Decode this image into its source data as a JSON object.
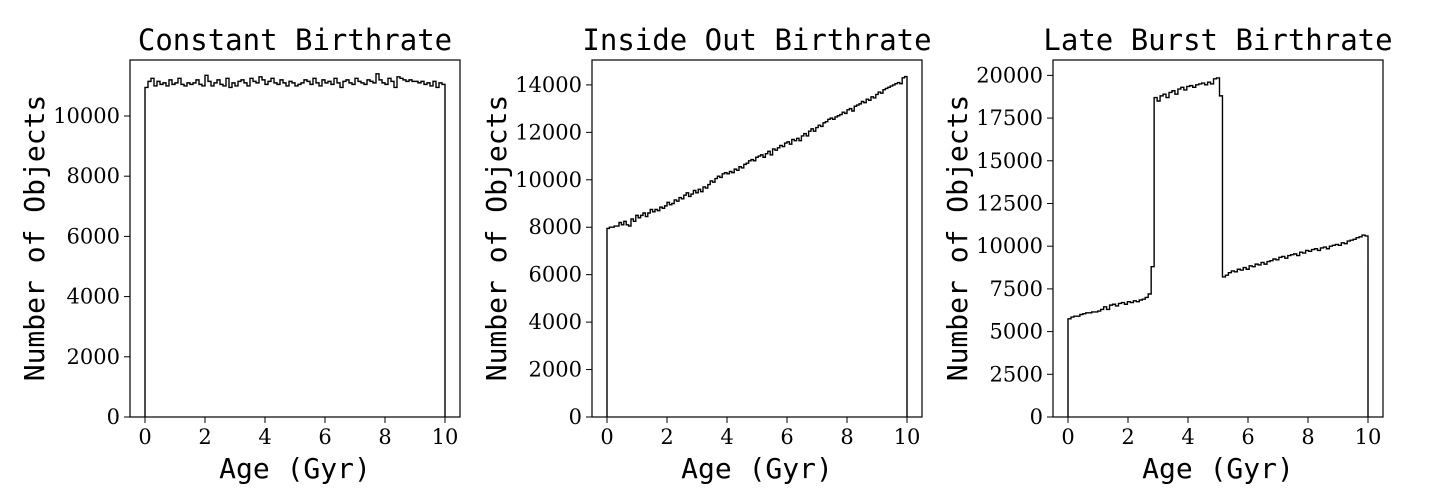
{
  "chart_data": [
    {
      "type": "histogram",
      "title": "Constant Birthrate",
      "xlabel": "Age (Gyr)",
      "ylabel": "Number of Objects",
      "xlim": [
        -0.5,
        10.5
      ],
      "ylim": [
        0,
        11860
      ],
      "xticks": [
        0,
        2,
        4,
        6,
        8,
        10
      ],
      "xticklabels": [
        "0",
        "2",
        "4",
        "6",
        "8",
        "10"
      ],
      "yticks": [
        0,
        2000,
        4000,
        6000,
        8000,
        10000
      ],
      "yticklabels": [
        "0",
        "2000",
        "4000",
        "6000",
        "8000",
        "10000"
      ],
      "bin_range": [
        0,
        10
      ],
      "counts": [
        10950,
        11150,
        11250,
        11000,
        11150,
        11050,
        11100,
        11000,
        11200,
        11050,
        11100,
        11250,
        11050,
        11000,
        11100,
        11050,
        11100,
        11200,
        11050,
        11000,
        11350,
        11150,
        11000,
        11100,
        11200,
        11050,
        11000,
        11250,
        10950,
        11100,
        11000,
        11150,
        11200,
        11100,
        11000,
        11250,
        11150,
        11100,
        11300,
        11200,
        11050,
        11150,
        11250,
        11100,
        11050,
        11200,
        11100,
        11000,
        11150,
        11100,
        11000,
        11050,
        11100,
        11200,
        11150,
        11050,
        11250,
        11100,
        11000,
        11200,
        11100,
        11150,
        11050,
        11250,
        11100,
        10950,
        11150,
        11200,
        11100,
        11050,
        11250,
        11150,
        11100,
        11050,
        11200,
        11150,
        11100,
        11400,
        11200,
        11100,
        11050,
        11250,
        11150,
        10950,
        11300,
        11250,
        11200,
        11150,
        11200,
        11150,
        11150,
        11100,
        11150,
        11050,
        11100,
        11000,
        11150,
        10950,
        11100,
        11050
      ]
    },
    {
      "type": "histogram",
      "title": "Inside Out Birthrate",
      "xlabel": "Age (Gyr)",
      "ylabel": "Number of Objects",
      "xlim": [
        -0.5,
        10.5
      ],
      "ylim": [
        0,
        15050
      ],
      "xticks": [
        0,
        2,
        4,
        6,
        8,
        10
      ],
      "xticklabels": [
        "0",
        "2",
        "4",
        "6",
        "8",
        "10"
      ],
      "yticks": [
        0,
        2000,
        4000,
        6000,
        8000,
        10000,
        12000,
        14000
      ],
      "yticklabels": [
        "0",
        "2000",
        "4000",
        "6000",
        "8000",
        "10000",
        "12000",
        "14000"
      ],
      "bin_range": [
        0,
        10
      ],
      "counts": [
        7950,
        8000,
        8000,
        8050,
        8050,
        8200,
        8100,
        8250,
        8100,
        8050,
        8350,
        8250,
        8500,
        8400,
        8500,
        8600,
        8450,
        8600,
        8750,
        8650,
        8750,
        8700,
        8850,
        8800,
        8900,
        9050,
        8950,
        9000,
        9150,
        9100,
        9250,
        9200,
        9350,
        9450,
        9300,
        9400,
        9550,
        9450,
        9600,
        9500,
        9700,
        9650,
        9800,
        9950,
        9900,
        10050,
        10150,
        10100,
        10250,
        10300,
        10250,
        10350,
        10300,
        10450,
        10400,
        10550,
        10500,
        10650,
        10700,
        10800,
        10850,
        10800,
        10950,
        11000,
        11050,
        10950,
        11100,
        11200,
        11050,
        11300,
        11250,
        11350,
        11450,
        11400,
        11550,
        11600,
        11500,
        11700,
        11650,
        11750,
        11650,
        11850,
        11950,
        11850,
        12050,
        12150,
        12050,
        12200,
        12300,
        12250,
        12400,
        12450,
        12550,
        12600,
        12550,
        12650,
        12700,
        12750,
        12850,
        12800,
        12950,
        13000,
        12900,
        13100,
        13150,
        13200,
        13300,
        13250,
        13400,
        13350,
        13500,
        13450,
        13600,
        13700,
        13650,
        13800,
        13850,
        13900,
        13950,
        14000,
        14050,
        14100,
        14050,
        14300,
        14350
      ]
    },
    {
      "type": "histogram",
      "title": "Late Burst Birthrate",
      "xlabel": "Age (Gyr)",
      "ylabel": "Number of Objects",
      "xlim": [
        -0.5,
        10.5
      ],
      "ylim": [
        0,
        20900
      ],
      "xticks": [
        0,
        2,
        4,
        6,
        8,
        10
      ],
      "xticklabels": [
        "0",
        "2",
        "4",
        "6",
        "8",
        "10"
      ],
      "yticks": [
        0,
        2500,
        5000,
        7500,
        10000,
        12500,
        15000,
        17500,
        20000
      ],
      "yticklabels": [
        "0",
        "2500",
        "5000",
        "7500",
        "10000",
        "12500",
        "15000",
        "17500",
        "20000"
      ],
      "bin_range": [
        0,
        10
      ],
      "counts": [
        5750,
        5850,
        5900,
        5900,
        6000,
        6050,
        6100,
        6100,
        6150,
        6150,
        6200,
        6300,
        6450,
        6300,
        6550,
        6600,
        6500,
        6650,
        6700,
        6600,
        6750,
        6700,
        6800,
        6750,
        6850,
        6900,
        7000,
        7200,
        8800,
        18700,
        18500,
        18800,
        18900,
        18700,
        19000,
        19100,
        18900,
        19200,
        19300,
        19150,
        19350,
        19400,
        19300,
        19450,
        19500,
        19550,
        19450,
        19600,
        19500,
        19800,
        19850,
        18800,
        8200,
        8300,
        8450,
        8550,
        8500,
        8650,
        8600,
        8750,
        8650,
        8850,
        8800,
        8950,
        8900,
        9050,
        8950,
        9100,
        9150,
        9250,
        9200,
        9350,
        9400,
        9300,
        9450,
        9500,
        9550,
        9450,
        9650,
        9600,
        9750,
        9700,
        9800,
        9850,
        9750,
        9900,
        9950,
        9850,
        10000,
        10050,
        10100,
        10050,
        10200,
        10150,
        10300,
        10350,
        10400,
        10500,
        10550,
        10650,
        10600
      ]
    }
  ]
}
